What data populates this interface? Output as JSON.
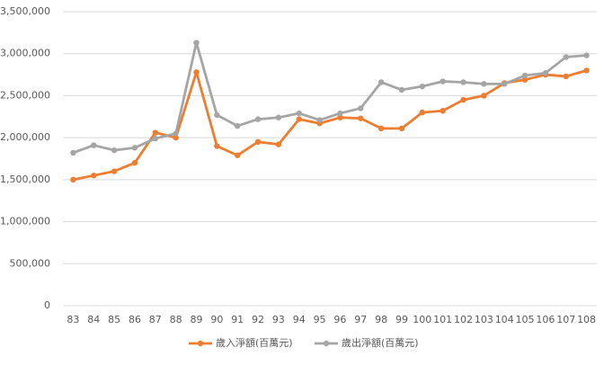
{
  "chart_data": {
    "type": "line",
    "categories": [
      "83",
      "84",
      "85",
      "86",
      "87",
      "88",
      "89",
      "90",
      "91",
      "92",
      "93",
      "94",
      "95",
      "96",
      "97",
      "98",
      "99",
      "100",
      "101",
      "102",
      "103",
      "104",
      "105",
      "106",
      "107",
      "108"
    ],
    "series": [
      {
        "name": "歲入淨額(百萬元)",
        "color": "#ed7d31",
        "values": [
          1500000,
          1550000,
          1600000,
          1700000,
          2060000,
          2000000,
          2780000,
          1900000,
          1790000,
          1950000,
          1920000,
          2220000,
          2170000,
          2240000,
          2230000,
          2110000,
          2110000,
          2300000,
          2320000,
          2450000,
          2500000,
          2650000,
          2690000,
          2750000,
          2730000,
          2800000
        ]
      },
      {
        "name": "歲出淨額(百萬元)",
        "color": "#a5a5a5",
        "values": [
          1820000,
          1910000,
          1850000,
          1880000,
          1990000,
          2050000,
          3130000,
          2270000,
          2140000,
          2220000,
          2240000,
          2290000,
          2210000,
          2290000,
          2350000,
          2660000,
          2570000,
          2610000,
          2670000,
          2660000,
          2640000,
          2640000,
          2740000,
          2770000,
          2960000,
          2980000
        ]
      }
    ],
    "ylim": [
      0,
      3500000
    ],
    "yticks": [
      0,
      {
        "value": 500000,
        "label": "500,000"
      },
      {
        "value": 1000000,
        "label": "1,000,000"
      },
      {
        "value": 1500000,
        "label": "1,500,000"
      },
      {
        "value": 2000000,
        "label": "2,000,000"
      },
      {
        "value": 2500000,
        "label": "2,500,000"
      },
      {
        "value": 3000000,
        "label": "3,000,000"
      },
      {
        "value": 3500000,
        "label": "3,500,000"
      }
    ],
    "grid": true,
    "legend": "bottom"
  }
}
